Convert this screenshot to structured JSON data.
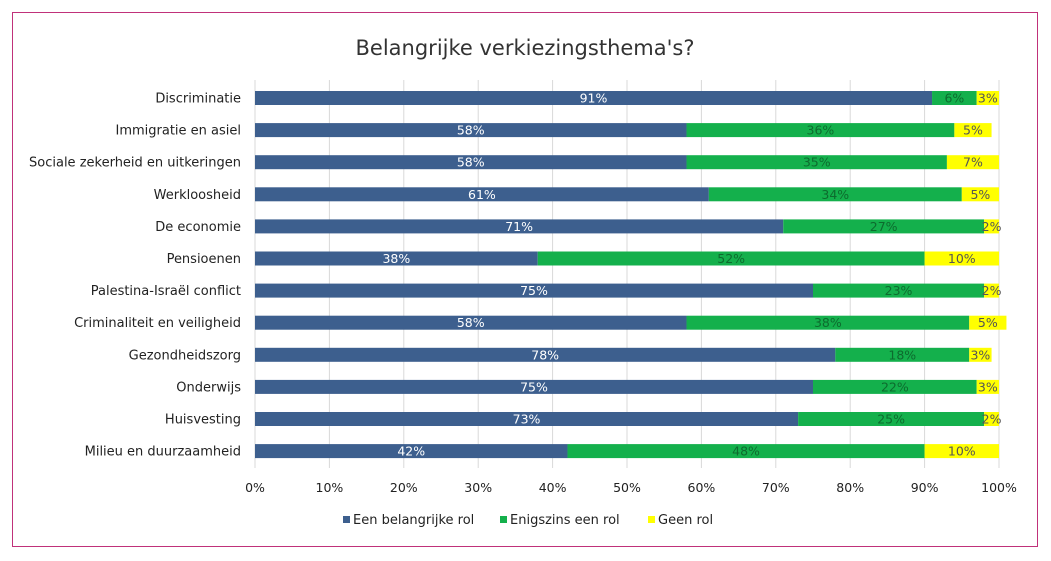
{
  "chart_data": {
    "type": "bar",
    "orientation": "horizontal",
    "stacking": "percent",
    "title": "Belangrijke verkiezingsthema's?",
    "categories": [
      "Discriminatie",
      "Immigratie en asiel",
      "Sociale zekerheid en uitkeringen",
      "Werkloosheid",
      "De economie",
      "Pensioenen",
      "Palestina-Israël conflict",
      "Criminaliteit en veiligheid",
      "Gezondheidszorg",
      "Onderwijs",
      "Huisvesting",
      "Milieu en duurzaamheid"
    ],
    "series": [
      {
        "name": "Een belangrijke rol",
        "color": "#3d5f8e",
        "label_color": "#ffffff",
        "values": [
          91,
          58,
          58,
          61,
          71,
          38,
          75,
          58,
          78,
          75,
          73,
          42
        ],
        "labels": [
          "91%",
          "58%",
          "58%",
          "61%",
          "71%",
          "38%",
          "75%",
          "58%",
          "78%",
          "75%",
          "73%",
          "42%"
        ]
      },
      {
        "name": "Enigszins een rol",
        "color": "#14b04c",
        "label_color": "#0d6b2e",
        "values": [
          6,
          36,
          35,
          34,
          27,
          52,
          23,
          38,
          18,
          22,
          25,
          48
        ],
        "labels": [
          "6%",
          "36%",
          "35%",
          "34%",
          "27%",
          "52%",
          "23%",
          "38%",
          "18%",
          "22%",
          "25%",
          "48%"
        ]
      },
      {
        "name": "Geen rol",
        "color": "#ffff00",
        "label_color": "#555555",
        "values": [
          3,
          5,
          7,
          5,
          2,
          10,
          2,
          5,
          3,
          3,
          2,
          10
        ],
        "labels": [
          "3%",
          "5%",
          "7%",
          "5%",
          "2%",
          "10%",
          "2%",
          "5%",
          "3%",
          "3%",
          "2%",
          "10%"
        ]
      }
    ],
    "x_ticks": [
      "0%",
      "10%",
      "20%",
      "30%",
      "40%",
      "50%",
      "60%",
      "70%",
      "80%",
      "90%",
      "100%"
    ],
    "xlim": [
      0,
      100
    ],
    "grid": "vertical",
    "grid_color": "#d9d9d9",
    "legend_position": "bottom",
    "frame_color": "#c0317a"
  }
}
